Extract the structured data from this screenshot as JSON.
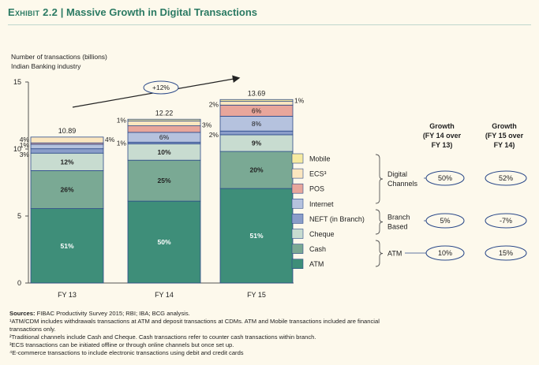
{
  "exhibit": {
    "label": "Exhibit 2.2",
    "separator": " | ",
    "title": "Massive Growth in Digital Transactions"
  },
  "chart_data": {
    "type": "bar",
    "stacked": true,
    "ylabel_line1": "Number of transactions (billions)",
    "ylabel_line2": "Indian Banking industry",
    "ylim": [
      0,
      15
    ],
    "yticks": [
      0,
      5,
      10,
      15
    ],
    "categories": [
      "FY 13",
      "FY 14",
      "FY 15"
    ],
    "totals": [
      10.89,
      12.22,
      13.69
    ],
    "growth_annotation": "+12%",
    "series": [
      {
        "name": "ATM",
        "color": "#3e8e79",
        "labels": [
          "51%",
          "50%",
          "51%"
        ],
        "percent": [
          51,
          50,
          51
        ]
      },
      {
        "name": "Cash",
        "color": "#7aa994",
        "labels": [
          "26%",
          "25%",
          "20%"
        ],
        "percent": [
          26,
          25,
          20
        ]
      },
      {
        "name": "Cheque",
        "color": "#c8dcd0",
        "labels": [
          "12%",
          "10%",
          "9%"
        ],
        "percent": [
          12,
          10,
          9
        ]
      },
      {
        "name": "NEFT (in Branch)",
        "color": "#8a9dc9",
        "labels": [
          "3%",
          "1%",
          "2%"
        ],
        "percent": [
          3,
          1,
          2
        ]
      },
      {
        "name": "Internet",
        "color": "#b5c2de",
        "labels": [
          "3%",
          "6%",
          "8%"
        ],
        "percent": [
          3,
          6,
          8
        ]
      },
      {
        "name": "POS",
        "color": "#e8a69b",
        "labels": [
          "1%",
          "4%",
          "6%"
        ],
        "percent": [
          1,
          4,
          6
        ]
      },
      {
        "name": "ECS³",
        "color": "#fbe6bf",
        "labels": [
          "4%",
          "3%",
          "2%"
        ],
        "percent": [
          4,
          3,
          2
        ]
      },
      {
        "name": "Mobile",
        "color": "#f6eaa0",
        "labels": [
          "",
          "1%",
          "1%"
        ],
        "percent": [
          0,
          1,
          1
        ]
      }
    ],
    "legend_order": [
      "Mobile",
      "ECS³",
      "POS",
      "Internet",
      "NEFT (in Branch)",
      "Cheque",
      "Cash",
      "ATM"
    ],
    "growth_table": {
      "col1_header": [
        "Growth",
        "(FY 14 over",
        "FY 13)"
      ],
      "col2_header": [
        "Growth",
        "(FY 15 over",
        "FY 14)"
      ],
      "groups": [
        {
          "label": [
            "Digital",
            "Channels"
          ],
          "fy14": "50%",
          "fy15": "52%"
        },
        {
          "label": [
            "Branch",
            "Based"
          ],
          "fy14": "5%",
          "fy15": "-7%"
        },
        {
          "label": [
            "ATM"
          ],
          "fy14": "10%",
          "fy15": "15%"
        }
      ]
    }
  },
  "footnotes": {
    "sources_label": "Sources:",
    "sources_text": " FIBAC Productivity Survey 2015; RBI; IBA; BCG analysis.",
    "lines": [
      "¹ATM/CDM includes withdrawals transactions at ATM and deposit transactions at CDMs. ATM and Mobile transactions included are financial",
      "transactions only.",
      "²Traditional channels include Cash and Cheque. Cash transactions refer to counter cash transactions within branch.",
      "³ECS transactions can be initiated offline or through online channels but once set up.",
      "⁴E-commerce transactions to include electronic transactions using debit and credit cards"
    ]
  },
  "colors": {
    "title": "#2b7a63",
    "background": "#fdf9ec",
    "bar_outline": "#2c4a8a",
    "oval_outline": "#2c4a8a"
  }
}
